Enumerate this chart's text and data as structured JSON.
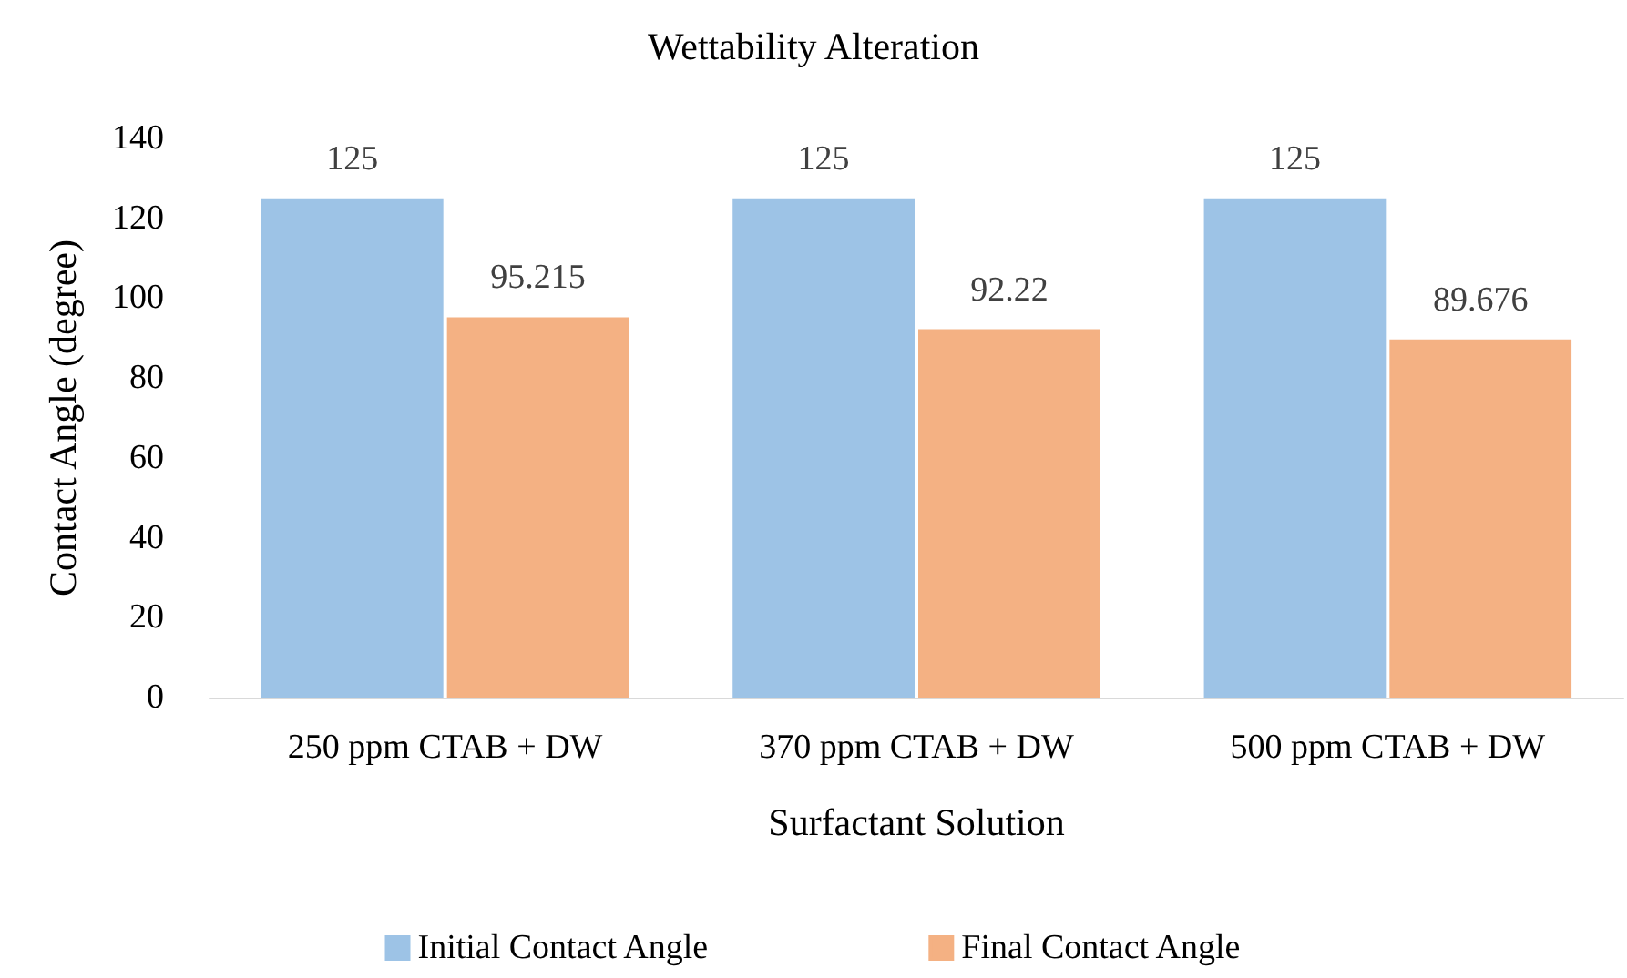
{
  "chart_data": {
    "type": "bar",
    "title": "Wettability Alteration",
    "xlabel": "Surfactant Solution",
    "ylabel": "Contact Angle (degree)",
    "categories": [
      "250 ppm CTAB + DW",
      "370 ppm CTAB + DW",
      "500 ppm CTAB + DW"
    ],
    "series": [
      {
        "name": "Initial Contact Angle",
        "color": "#9dc3e6",
        "values": [
          125,
          125,
          125
        ]
      },
      {
        "name": "Final Contact Angle",
        "color": "#f4b183",
        "values": [
          95.215,
          92.22,
          89.676
        ]
      }
    ],
    "ylim": [
      0,
      140
    ],
    "yticks": [
      0,
      20,
      40,
      60,
      80,
      100,
      120,
      140
    ],
    "grid": false,
    "legend": "bottom",
    "data_labels": true
  }
}
